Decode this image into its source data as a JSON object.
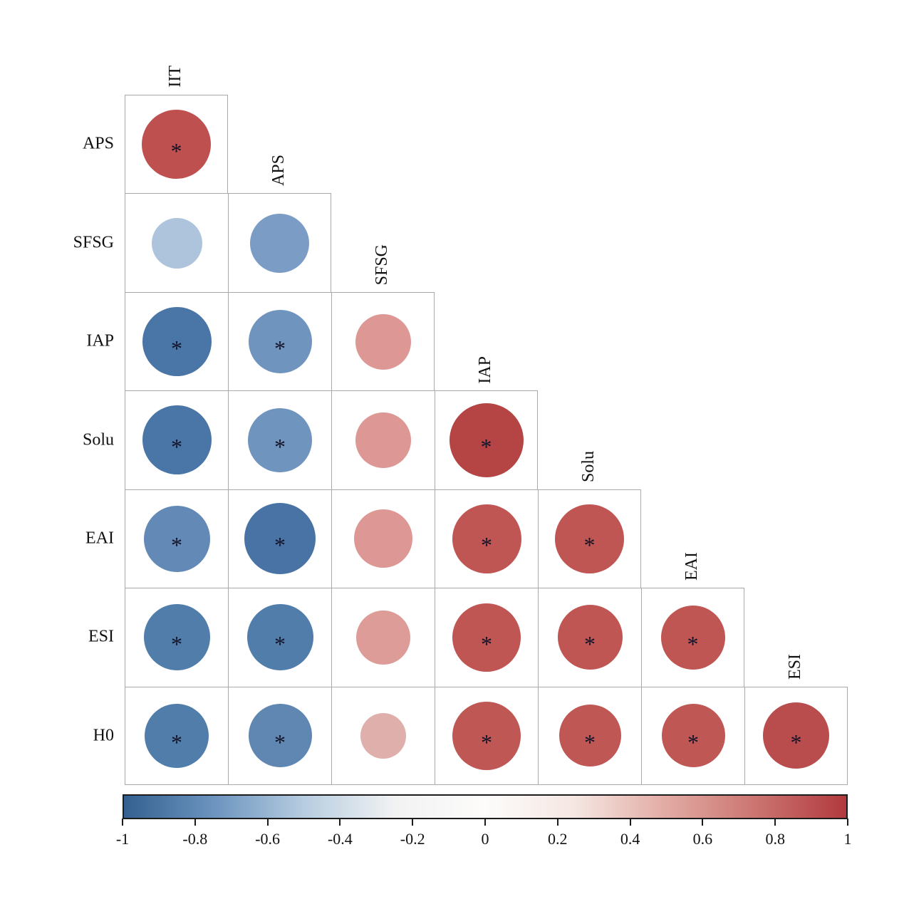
{
  "page": {
    "background": "#ffffff"
  },
  "chart_data": {
    "type": "heatmap",
    "subtype": "correlation-matrix-circles",
    "title": "",
    "variables": [
      "IIT",
      "APS",
      "SFSG",
      "IAP",
      "Solu",
      "EAI",
      "ESI",
      "H0"
    ],
    "row_labels": [
      "APS",
      "SFSG",
      "IAP",
      "Solu",
      "EAI",
      "ESI",
      "H0"
    ],
    "col_labels": [
      "IIT",
      "APS",
      "SFSG",
      "IAP",
      "Solu",
      "EAI",
      "ESI"
    ],
    "significance_marker": "*",
    "layout": {
      "triangle": "lower",
      "diagonal_shown": false,
      "grid_lines": true,
      "colorbar_position": "bottom",
      "value_range": [
        -1,
        1
      ]
    },
    "colorbar": {
      "min": -1,
      "max": 1,
      "ticks": [
        -1,
        -0.8,
        -0.6,
        -0.4,
        -0.2,
        0,
        0.2,
        0.4,
        0.6,
        0.8,
        1
      ],
      "tick_labels": [
        "-1",
        "-0.8",
        "-0.6",
        "-0.4",
        "-0.2",
        "0",
        "0.2",
        "0.4",
        "0.6",
        "0.8",
        "1"
      ],
      "negative_end_color": "#336090",
      "positive_end_color": "#b23a3f",
      "gradient_stops": [
        "#336090",
        "#6c94bf",
        "#b7cde0",
        "#f2f2f3",
        "#fdfcfb",
        "#f5e6e2",
        "#e2aba4",
        "#cb7470",
        "#b23a3f"
      ]
    },
    "cells": [
      {
        "row": "APS",
        "col": "IIT",
        "r": 0.75,
        "significant": true,
        "color": "#bf5050",
        "size": 0.7
      },
      {
        "row": "SFSG",
        "col": "IIT",
        "r": -0.35,
        "significant": false,
        "color": "#aec4dc",
        "size": 0.51
      },
      {
        "row": "SFSG",
        "col": "APS",
        "r": -0.55,
        "significant": false,
        "color": "#7b9cc4",
        "size": 0.6
      },
      {
        "row": "IAP",
        "col": "IIT",
        "r": -0.75,
        "significant": true,
        "color": "#4a76a7",
        "size": 0.7
      },
      {
        "row": "IAP",
        "col": "APS",
        "r": -0.6,
        "significant": true,
        "color": "#6f94bd",
        "size": 0.64
      },
      {
        "row": "IAP",
        "col": "SFSG",
        "r": 0.4,
        "significant": false,
        "color": "#dd9794",
        "size": 0.56
      },
      {
        "row": "Solu",
        "col": "IIT",
        "r": -0.75,
        "significant": true,
        "color": "#4a76a7",
        "size": 0.7
      },
      {
        "row": "Solu",
        "col": "APS",
        "r": -0.6,
        "significant": true,
        "color": "#6f94bd",
        "size": 0.65
      },
      {
        "row": "Solu",
        "col": "SFSG",
        "r": 0.4,
        "significant": false,
        "color": "#dd9794",
        "size": 0.56
      },
      {
        "row": "Solu",
        "col": "IAP",
        "r": 0.9,
        "significant": true,
        "color": "#b54444",
        "size": 0.75
      },
      {
        "row": "EAI",
        "col": "IIT",
        "r": -0.65,
        "significant": true,
        "color": "#6389b6",
        "size": 0.67
      },
      {
        "row": "EAI",
        "col": "APS",
        "r": -0.78,
        "significant": true,
        "color": "#4873a4",
        "size": 0.72
      },
      {
        "row": "EAI",
        "col": "SFSG",
        "r": 0.42,
        "significant": false,
        "color": "#dd9794",
        "size": 0.59
      },
      {
        "row": "EAI",
        "col": "IAP",
        "r": 0.68,
        "significant": true,
        "color": "#c05654",
        "size": 0.7
      },
      {
        "row": "EAI",
        "col": "Solu",
        "r": 0.68,
        "significant": true,
        "color": "#c05654",
        "size": 0.7
      },
      {
        "row": "ESI",
        "col": "IIT",
        "r": -0.7,
        "significant": true,
        "color": "#517dab",
        "size": 0.67
      },
      {
        "row": "ESI",
        "col": "APS",
        "r": -0.7,
        "significant": true,
        "color": "#517dab",
        "size": 0.67
      },
      {
        "row": "ESI",
        "col": "SFSG",
        "r": 0.38,
        "significant": false,
        "color": "#de9c99",
        "size": 0.55
      },
      {
        "row": "ESI",
        "col": "IAP",
        "r": 0.66,
        "significant": true,
        "color": "#c05654",
        "size": 0.69
      },
      {
        "row": "ESI",
        "col": "Solu",
        "r": 0.65,
        "significant": true,
        "color": "#c05654",
        "size": 0.66
      },
      {
        "row": "ESI",
        "col": "EAI",
        "r": 0.65,
        "significant": true,
        "color": "#c05654",
        "size": 0.65
      },
      {
        "row": "H0",
        "col": "IIT",
        "r": -0.68,
        "significant": true,
        "color": "#517dab",
        "size": 0.65
      },
      {
        "row": "H0",
        "col": "APS",
        "r": -0.62,
        "significant": true,
        "color": "#5f87b2",
        "size": 0.64
      },
      {
        "row": "H0",
        "col": "SFSG",
        "r": 0.28,
        "significant": false,
        "color": "#dfafac",
        "size": 0.46
      },
      {
        "row": "H0",
        "col": "IAP",
        "r": 0.66,
        "significant": true,
        "color": "#bf5755",
        "size": 0.69
      },
      {
        "row": "H0",
        "col": "Solu",
        "r": 0.62,
        "significant": true,
        "color": "#bf5755",
        "size": 0.63
      },
      {
        "row": "H0",
        "col": "EAI",
        "r": 0.64,
        "significant": true,
        "color": "#bf5755",
        "size": 0.645
      },
      {
        "row": "H0",
        "col": "ESI",
        "r": 0.72,
        "significant": true,
        "color": "#b94c4c",
        "size": 0.67
      }
    ]
  }
}
